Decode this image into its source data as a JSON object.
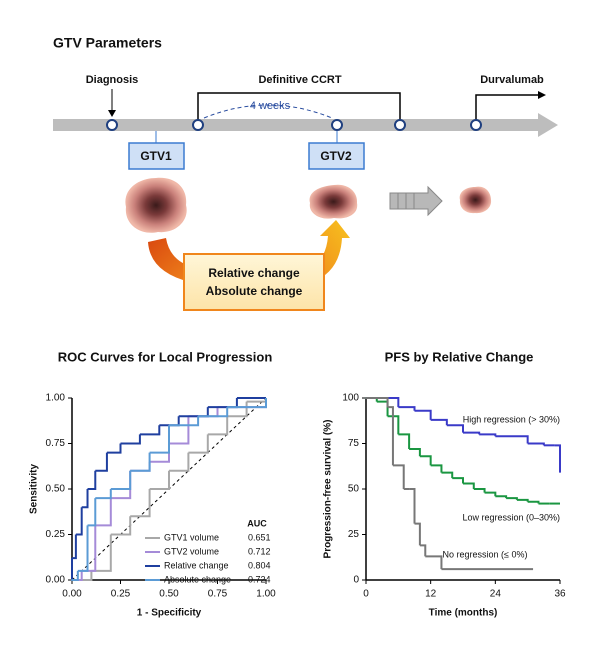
{
  "diagram": {
    "title": "GTV Parameters",
    "timeline": [
      "Diagnosis",
      "Definitive CCRT",
      "Durvalumab"
    ],
    "interval": "4 weeks",
    "boxes": [
      "GTV1",
      "GTV2"
    ],
    "change_box": [
      "Relative change",
      "Absolute change"
    ]
  },
  "chart_data": [
    {
      "type": "line",
      "step": true,
      "title": "ROC Curves for Local Progression",
      "x_label": "1 - Specificity",
      "y_label": "Sensitivity",
      "xlim": [
        0,
        1
      ],
      "ylim": [
        0,
        1
      ],
      "xticks": [
        {
          "value": 0,
          "label": "0.00"
        },
        {
          "value": 0.25,
          "label": "0.25"
        },
        {
          "value": 0.5,
          "label": "0.50"
        },
        {
          "value": 0.75,
          "label": "0.75"
        },
        {
          "value": 1,
          "label": "1.00"
        }
      ],
      "yticks": [
        {
          "value": 0,
          "label": "0.00"
        },
        {
          "value": 0.25,
          "label": "0.25"
        },
        {
          "value": 0.5,
          "label": "0.50"
        },
        {
          "value": 0.75,
          "label": "0.75"
        },
        {
          "value": 1,
          "label": "1.00"
        }
      ],
      "reference_diagonal": true,
      "legend_title": "AUC",
      "series": [
        {
          "name": "GTV1 volume",
          "auc": 0.651,
          "color": "#a8a8a8",
          "x": [
            0,
            0.1,
            0.2,
            0.3,
            0.4,
            0.5,
            0.6,
            0.7,
            0.8,
            0.9,
            1
          ],
          "values": [
            0,
            0.05,
            0.25,
            0.35,
            0.5,
            0.6,
            0.7,
            0.8,
            0.9,
            0.98,
            1
          ]
        },
        {
          "name": "GTV2 volume",
          "auc": 0.712,
          "color": "#a58bd8",
          "x": [
            0,
            0.05,
            0.12,
            0.2,
            0.3,
            0.4,
            0.5,
            0.6,
            0.75,
            1
          ],
          "values": [
            0,
            0.05,
            0.3,
            0.45,
            0.6,
            0.65,
            0.75,
            0.9,
            0.95,
            1
          ]
        },
        {
          "name": "Relative change",
          "auc": 0.804,
          "color": "#1f3f9f",
          "x": [
            0,
            0,
            0.02,
            0.05,
            0.08,
            0.12,
            0.18,
            0.25,
            0.35,
            0.45,
            0.55,
            0.7,
            0.85,
            1
          ],
          "values": [
            0,
            0.12,
            0.25,
            0.4,
            0.5,
            0.6,
            0.7,
            0.75,
            0.8,
            0.85,
            0.9,
            0.95,
            1,
            1
          ]
        },
        {
          "name": "Absolute change",
          "auc": 0.724,
          "color": "#5b9bd5",
          "x": [
            0,
            0.03,
            0.08,
            0.12,
            0.2,
            0.3,
            0.4,
            0.5,
            0.65,
            0.8,
            1
          ],
          "values": [
            0,
            0.05,
            0.3,
            0.45,
            0.5,
            0.6,
            0.7,
            0.85,
            0.9,
            0.95,
            1
          ]
        }
      ]
    },
    {
      "type": "line",
      "step": true,
      "title": "PFS by Relative Change",
      "x_label": "Time (months)",
      "y_label": "Progression-free survival (%)",
      "xlim": [
        0,
        36
      ],
      "ylim": [
        0,
        100
      ],
      "xticks": [
        0,
        12,
        24,
        36
      ],
      "yticks": [
        0,
        25,
        50,
        75,
        100
      ],
      "series": [
        {
          "name": "High regression (> 30%)",
          "color": "#3a3ac8",
          "x": [
            0,
            3,
            6,
            9,
            12,
            15,
            18,
            21,
            24,
            27,
            30,
            33,
            35,
            36
          ],
          "values": [
            100,
            100,
            95,
            93,
            88,
            85,
            81,
            80,
            79,
            79,
            75,
            74,
            74,
            59
          ]
        },
        {
          "name": "Low regression (0–30%)",
          "color": "#1a9641",
          "x": [
            0,
            2,
            4,
            6,
            8,
            10,
            12,
            14,
            16,
            18,
            20,
            22,
            24,
            26,
            28,
            30,
            32,
            34,
            36
          ],
          "values": [
            100,
            98,
            90,
            80,
            72,
            68,
            63,
            59,
            56,
            53,
            50,
            48,
            46,
            45,
            44,
            43,
            42,
            42,
            42
          ]
        },
        {
          "name": "No regression (≤ 0%)",
          "color": "#777777",
          "x": [
            0,
            4,
            5,
            7,
            8,
            9,
            10,
            11,
            14,
            31
          ],
          "values": [
            100,
            95,
            63,
            50,
            50,
            31,
            19,
            13,
            6,
            6
          ]
        }
      ]
    }
  ]
}
